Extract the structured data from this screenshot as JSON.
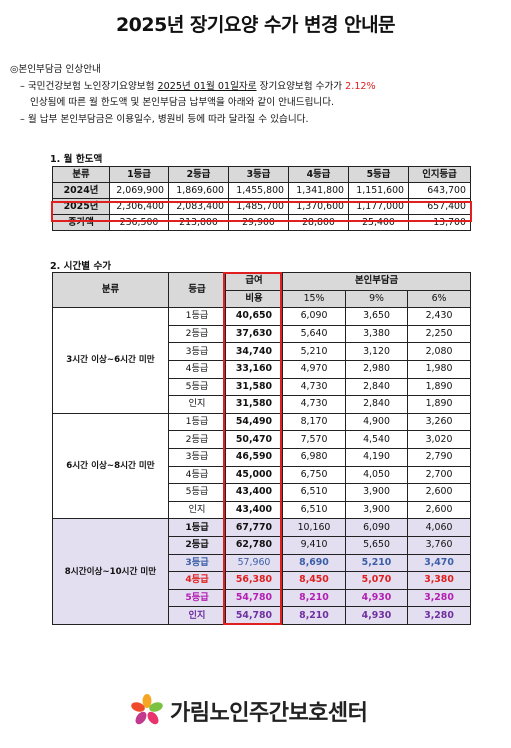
{
  "title": "2025년 장기요양 수가 변경 안내문",
  "intro": {
    "heading": "◎본인부담금 인상안내",
    "line1_a": "– 국민건강보험 노인장기요양보험 ",
    "line1_date": "2025년 01월 01일자로",
    "line1_b": " 장기요양보험 수가가 ",
    "line1_rate": "2.12%",
    "line2": "인상됨에 따른 월 한도액 및 본인부담금 납부액을 아래와 같이 안내드립니다.",
    "line3": "– 월 납부 본인부담금은 이용일수, 병원비 등에 따라 달라질 수 있습니다."
  },
  "section1": {
    "title": "1. 월 한도액",
    "headers": [
      "분류",
      "1등급",
      "2등급",
      "3등급",
      "4등급",
      "5등급",
      "인지등급"
    ],
    "rows": [
      {
        "label": "2024년",
        "values": [
          "2,069,900",
          "1,869,600",
          "1,455,800",
          "1,341,800",
          "1,151,600",
          "643,700"
        ]
      },
      {
        "label": "2025년",
        "values": [
          "2,306,400",
          "2,083,400",
          "1,485,700",
          "1,370,600",
          "1,177,000",
          "657,400"
        ]
      },
      {
        "label": "증가액",
        "values": [
          "236,500",
          "213,800",
          "29,900",
          "28,800",
          "25,400",
          "13,700"
        ]
      }
    ]
  },
  "section2": {
    "title": "2. 시간별 수가",
    "header": {
      "category": "분류",
      "grade": "등급",
      "fee_line1": "급여",
      "fee_line2": "비용",
      "copay": "본인부담금",
      "rates": [
        "15%",
        "9%",
        "6%"
      ]
    },
    "groups": [
      {
        "name": "3시간 이상~6시간 미만",
        "rows": [
          {
            "grade": "1등급",
            "fee": "40,650",
            "p15": "6,090",
            "p9": "3,650",
            "p6": "2,430"
          },
          {
            "grade": "2등급",
            "fee": "37,630",
            "p15": "5,640",
            "p9": "3,380",
            "p6": "2,250"
          },
          {
            "grade": "3등급",
            "fee": "34,740",
            "p15": "5,210",
            "p9": "3,120",
            "p6": "2,080"
          },
          {
            "grade": "4등급",
            "fee": "33,160",
            "p15": "4,970",
            "p9": "2,980",
            "p6": "1,980"
          },
          {
            "grade": "5등급",
            "fee": "31,580",
            "p15": "4,730",
            "p9": "2,840",
            "p6": "1,890"
          },
          {
            "grade": "인지",
            "fee": "31,580",
            "p15": "4,730",
            "p9": "2,840",
            "p6": "1,890"
          }
        ]
      },
      {
        "name": "6시간 이상~8시간 미만",
        "rows": [
          {
            "grade": "1등급",
            "fee": "54,490",
            "p15": "8,170",
            "p9": "4,900",
            "p6": "3,260"
          },
          {
            "grade": "2등급",
            "fee": "50,470",
            "p15": "7,570",
            "p9": "4,540",
            "p6": "3,020"
          },
          {
            "grade": "3등급",
            "fee": "46,590",
            "p15": "6,980",
            "p9": "4,190",
            "p6": "2,790"
          },
          {
            "grade": "4등급",
            "fee": "45,000",
            "p15": "6,750",
            "p9": "4,050",
            "p6": "2,700"
          },
          {
            "grade": "5등급",
            "fee": "43,400",
            "p15": "6,510",
            "p9": "3,900",
            "p6": "2,600"
          },
          {
            "grade": "인지",
            "fee": "43,400",
            "p15": "6,510",
            "p9": "3,900",
            "p6": "2,600"
          }
        ]
      },
      {
        "name": "8시간이상~10시간 미만",
        "rows": [
          {
            "grade": "1등급",
            "fee": "67,770",
            "p15": "10,160",
            "p9": "6,090",
            "p6": "4,060"
          },
          {
            "grade": "2등급",
            "fee": "62,780",
            "p15": "9,410",
            "p9": "5,650",
            "p6": "3,760"
          },
          {
            "grade": "3등급",
            "fee": "57,960",
            "p15": "8,690",
            "p9": "5,210",
            "p6": "3,470"
          },
          {
            "grade": "4등급",
            "fee": "56,380",
            "p15": "8,450",
            "p9": "5,070",
            "p6": "3,380"
          },
          {
            "grade": "5등급",
            "fee": "54,780",
            "p15": "8,210",
            "p9": "4,930",
            "p6": "3,280"
          },
          {
            "grade": "인지",
            "fee": "54,780",
            "p15": "8,210",
            "p9": "4,930",
            "p6": "3,280"
          }
        ]
      }
    ]
  },
  "colors": {
    "highlight": "#e02020",
    "header_bg": "#d9d9d9",
    "group3_bg": "#e4dff0",
    "grade3_text": "#3a5fa8",
    "grade4_text": "#e02020",
    "grade5_text": "#b21fb2",
    "cognitive_text": "#7030a0"
  },
  "footer": {
    "logo_icon": "flower-logo-icon",
    "name": "가림노인주간보호센터"
  }
}
